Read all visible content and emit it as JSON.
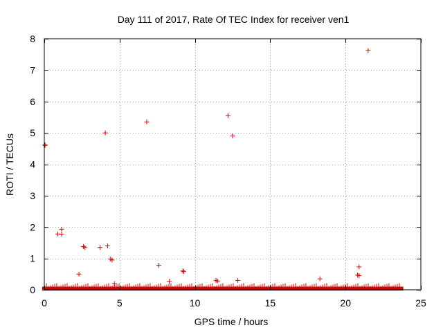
{
  "chart_data": {
    "type": "scatter",
    "title": "Day 111 of 2017, Rate Of TEC Index for receiver ven1",
    "xlabel": "GPS time / hours",
    "ylabel": "ROTI / TECUs",
    "xlim": [
      0,
      25
    ],
    "ylim": [
      0,
      8
    ],
    "xticks": [
      0,
      5,
      10,
      15,
      20,
      25
    ],
    "yticks": [
      0,
      1,
      2,
      3,
      4,
      5,
      6,
      7,
      8
    ],
    "xtick_labels": [
      "0",
      "5",
      "10",
      "15",
      "20",
      "25"
    ],
    "ytick_labels": [
      "0",
      "1",
      "2",
      "3",
      "4",
      "5",
      "6",
      "7",
      "8"
    ],
    "grid": true,
    "grid_style": "dotted",
    "marker": "+",
    "color": "#e00000",
    "baseline_band": {
      "description": "dense cluster of near-zero values",
      "x_range": [
        0,
        23.7
      ],
      "y_max": 0.1
    },
    "series": [
      {
        "x": [
          0.05,
          0.05,
          0.9,
          1.15,
          1.15,
          2.3,
          2.6,
          2.7,
          3.7,
          4.05,
          4.2,
          4.4,
          4.5,
          4.65,
          6.8,
          7.6,
          8.3,
          9.2,
          9.25,
          11.4,
          11.5,
          12.2,
          12.5,
          12.85,
          18.3,
          20.8,
          20.9,
          20.9,
          21.5
        ],
        "y": [
          4.62,
          4.6,
          1.78,
          1.93,
          1.77,
          0.5,
          1.38,
          1.35,
          1.35,
          5.0,
          1.4,
          0.98,
          0.95,
          0.2,
          5.35,
          0.78,
          0.27,
          0.6,
          0.58,
          0.3,
          0.28,
          5.55,
          4.9,
          0.3,
          0.35,
          0.47,
          0.45,
          0.73,
          7.62
        ]
      }
    ]
  }
}
